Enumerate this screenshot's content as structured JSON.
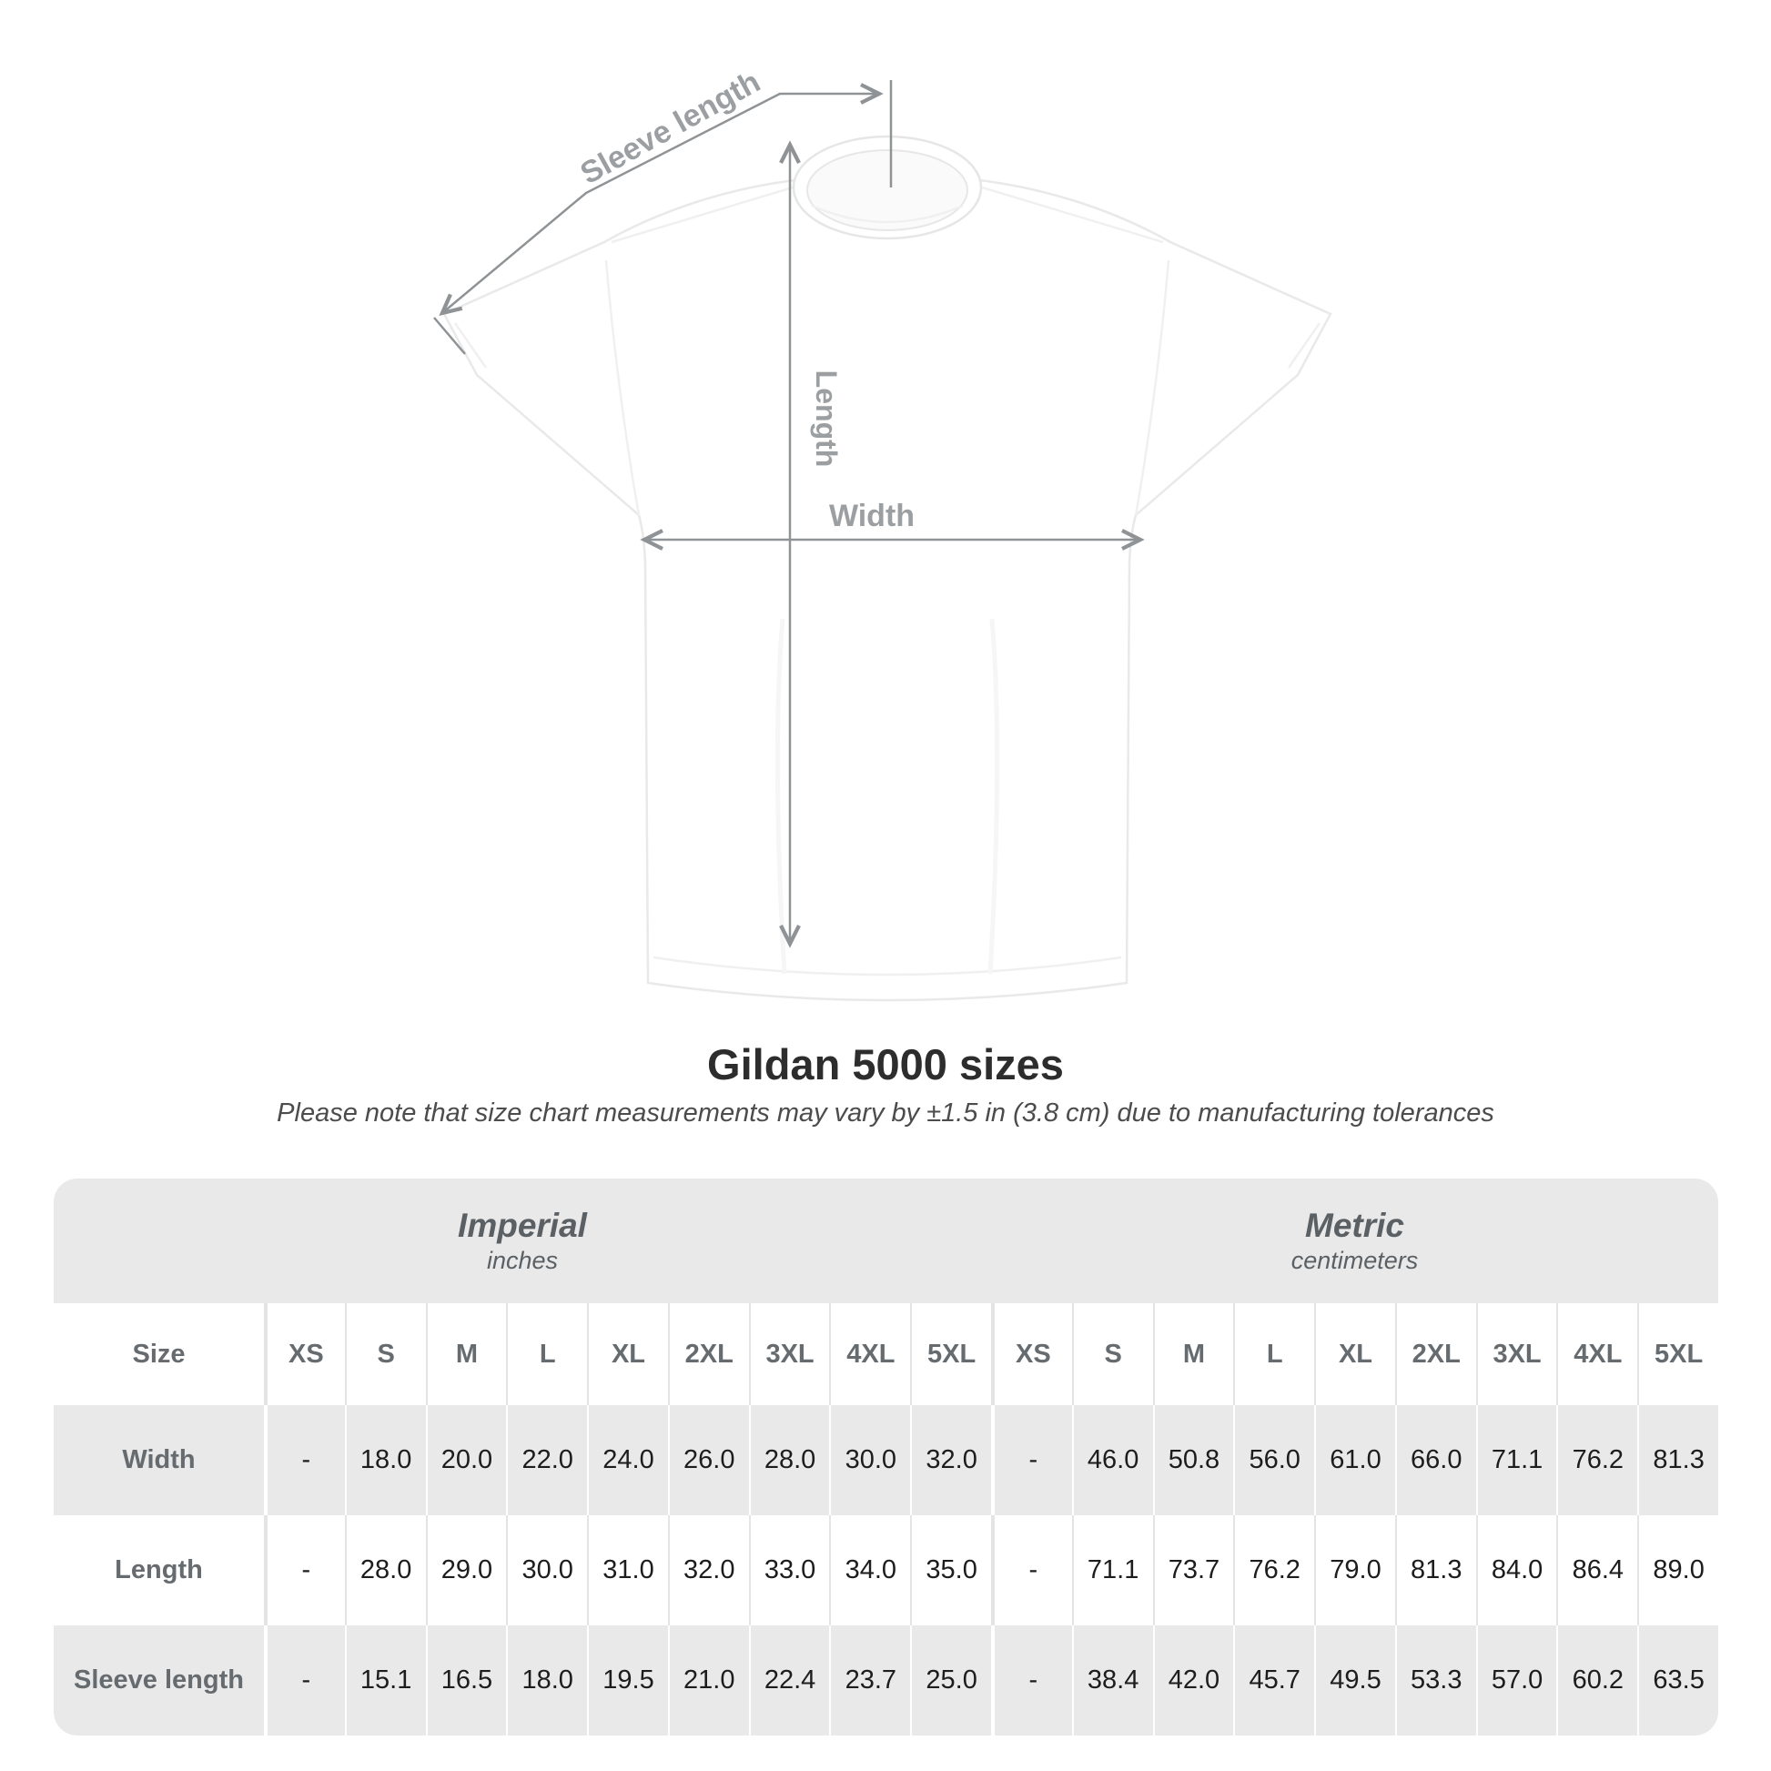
{
  "diagram": {
    "sleeve_length_label": "Sleeve length",
    "length_label": "Length",
    "width_label": "Width"
  },
  "sections": {
    "imperial": {
      "label": "Imperial",
      "units": "inches"
    },
    "metric": {
      "label": "Metric",
      "units": "centimeters"
    }
  },
  "chart_data": {
    "type": "table",
    "title": "Gildan 5000 sizes",
    "subtitle": "Please note that size chart measurements may vary by ±1.5 in (3.8 cm) due to manufacturing tolerances",
    "size_header": "Size",
    "columns": [
      "XS",
      "S",
      "M",
      "L",
      "XL",
      "2XL",
      "3XL",
      "4XL",
      "5XL"
    ],
    "rows": [
      {
        "label": "Width",
        "imperial": [
          "-",
          "18.0",
          "20.0",
          "22.0",
          "24.0",
          "26.0",
          "28.0",
          "30.0",
          "32.0"
        ],
        "metric": [
          "-",
          "46.0",
          "50.8",
          "56.0",
          "61.0",
          "66.0",
          "71.1",
          "76.2",
          "81.3"
        ]
      },
      {
        "label": "Length",
        "imperial": [
          "-",
          "28.0",
          "29.0",
          "30.0",
          "31.0",
          "32.0",
          "33.0",
          "34.0",
          "35.0"
        ],
        "metric": [
          "-",
          "71.1",
          "73.7",
          "76.2",
          "79.0",
          "81.3",
          "84.0",
          "86.4",
          "89.0"
        ]
      },
      {
        "label": "Sleeve length",
        "imperial": [
          "-",
          "15.1",
          "16.5",
          "18.0",
          "19.5",
          "21.0",
          "22.4",
          "23.7",
          "25.0"
        ],
        "metric": [
          "-",
          "38.4",
          "42.0",
          "45.7",
          "49.5",
          "53.3",
          "57.0",
          "60.2",
          "63.5"
        ]
      }
    ]
  },
  "colors": {
    "row_shade": "#e9e9e9",
    "value_text": "#1d1d1d",
    "label_text": "#666b6f",
    "diagram_line": "#8f9396",
    "diagram_label": "#9b9fa2"
  }
}
